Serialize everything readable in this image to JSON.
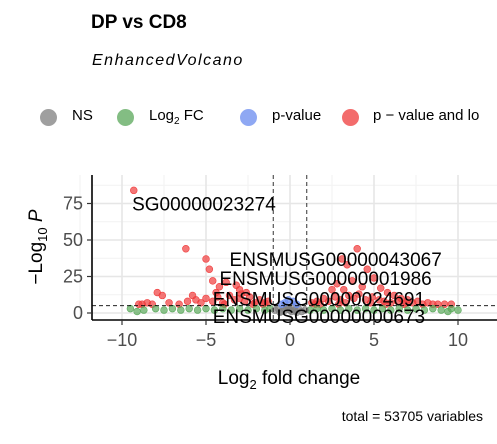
{
  "chart_data": {
    "type": "scatter",
    "title": "DP vs CD8",
    "subtitle": "EnhancedVolcano",
    "xlabel": "Log2 fold change",
    "ylabel": "−Log10 P",
    "xlim": [
      -12,
      11
    ],
    "ylim": [
      -2,
      92
    ],
    "x_ticks": [
      -10,
      -5,
      0,
      5,
      10
    ],
    "y_ticks": [
      0,
      25,
      50,
      75
    ],
    "grid": true,
    "legend_position": "top",
    "caption": "total = 53705 variables",
    "legend": [
      {
        "key": "NS",
        "label": "NS",
        "sub": "",
        "color": "#808080"
      },
      {
        "key": "FC",
        "label": "Log",
        "sub": "2",
        "suffix": " FC",
        "color": "#5aa85a"
      },
      {
        "key": "P",
        "label": "p-value",
        "sub": "",
        "suffix": "",
        "color": "#6a8cf0"
      },
      {
        "key": "FC_P",
        "label": "p − value and lo",
        "sub": "",
        "suffix": "",
        "color": "#f03c3c"
      }
    ],
    "colors": {
      "NS": "#808080",
      "FC": "#5aa85a",
      "P": "#6a8cf0",
      "FC_P": "#f03c3c"
    },
    "thresholds": {
      "log2fc": [
        -1,
        1
      ],
      "neg_log10_p": 5
    },
    "series": [
      {
        "key": "FC_P",
        "points": [
          [
            -9.3,
            84
          ],
          [
            -6.2,
            44
          ],
          [
            -5.0,
            37
          ],
          [
            -4.8,
            30
          ],
          [
            -4.6,
            22
          ],
          [
            -7.9,
            14
          ],
          [
            -7.6,
            12
          ],
          [
            -3.8,
            21
          ],
          [
            -4.2,
            18
          ],
          [
            -3.2,
            19
          ],
          [
            -3.0,
            16
          ],
          [
            -2.6,
            14
          ],
          [
            -8.2,
            6
          ],
          [
            -8.5,
            7
          ],
          [
            -8.8,
            6
          ],
          [
            -7.2,
            7
          ],
          [
            -6.6,
            6
          ],
          [
            -6.1,
            8
          ],
          [
            -5.6,
            9
          ],
          [
            -5.3,
            7
          ],
          [
            -5.0,
            10
          ],
          [
            -4.6,
            8
          ],
          [
            -4.3,
            11
          ],
          [
            -4.0,
            7
          ],
          [
            -3.6,
            12
          ],
          [
            -3.3,
            9
          ],
          [
            -3.0,
            10
          ],
          [
            -2.7,
            8
          ],
          [
            -2.4,
            11
          ],
          [
            -2.1,
            7
          ],
          [
            -1.8,
            9
          ],
          [
            -1.5,
            7
          ],
          [
            -1.3,
            8
          ],
          [
            -9.0,
            6
          ],
          [
            -2.2,
            6
          ],
          [
            -3.9,
            6
          ],
          [
            -1.6,
            6
          ],
          [
            -5.8,
            12
          ],
          [
            -4.4,
            14
          ],
          [
            -2.9,
            13
          ],
          [
            4.0,
            44
          ],
          [
            3.1,
            37
          ],
          [
            3.4,
            33
          ],
          [
            4.6,
            30
          ],
          [
            5.0,
            24
          ],
          [
            3.7,
            22
          ],
          [
            2.8,
            20
          ],
          [
            3.2,
            16
          ],
          [
            2.5,
            16
          ],
          [
            4.3,
            18
          ],
          [
            5.4,
            17
          ],
          [
            5.8,
            14
          ],
          [
            6.2,
            12
          ],
          [
            6.6,
            10
          ],
          [
            7.0,
            9
          ],
          [
            7.6,
            8
          ],
          [
            8.2,
            7
          ],
          [
            8.8,
            6
          ],
          [
            9.2,
            6
          ],
          [
            2.0,
            10
          ],
          [
            2.3,
            8
          ],
          [
            1.6,
            8
          ],
          [
            1.3,
            7
          ],
          [
            2.7,
            11
          ],
          [
            3.0,
            9
          ],
          [
            3.5,
            12
          ],
          [
            3.8,
            10
          ],
          [
            4.1,
            13
          ],
          [
            4.5,
            9
          ],
          [
            4.9,
            11
          ],
          [
            5.3,
            9
          ],
          [
            5.6,
            8
          ],
          [
            6.0,
            7
          ],
          [
            6.4,
            8
          ],
          [
            6.8,
            6
          ],
          [
            7.3,
            7
          ],
          [
            7.9,
            6
          ],
          [
            8.5,
            6
          ],
          [
            9.6,
            6
          ],
          [
            1.8,
            6
          ],
          [
            1.5,
            6
          ],
          [
            2.9,
            6
          ],
          [
            3.3,
            7
          ],
          [
            4.8,
            7
          ],
          [
            5.7,
            6
          ],
          [
            6.9,
            7
          ]
        ]
      },
      {
        "key": "FC",
        "points": [
          [
            -9.5,
            3
          ],
          [
            -8.7,
            2
          ],
          [
            -8.0,
            3
          ],
          [
            -7.5,
            2
          ],
          [
            -7.0,
            3
          ],
          [
            -6.5,
            2
          ],
          [
            -6.0,
            3
          ],
          [
            -5.5,
            2
          ],
          [
            -5.0,
            3
          ],
          [
            -4.5,
            2
          ],
          [
            -4.0,
            3
          ],
          [
            -3.5,
            2
          ],
          [
            -3.0,
            3
          ],
          [
            -2.5,
            2
          ],
          [
            -2.0,
            3
          ],
          [
            -1.5,
            2
          ],
          [
            -1.2,
            3
          ],
          [
            1.2,
            2
          ],
          [
            1.6,
            3
          ],
          [
            2.0,
            2
          ],
          [
            2.5,
            3
          ],
          [
            3.0,
            2
          ],
          [
            3.5,
            3
          ],
          [
            4.0,
            2
          ],
          [
            4.5,
            3
          ],
          [
            5.0,
            2
          ],
          [
            5.5,
            3
          ],
          [
            6.0,
            2
          ],
          [
            6.5,
            3
          ],
          [
            7.0,
            2
          ],
          [
            7.5,
            3
          ],
          [
            8.0,
            2
          ],
          [
            8.5,
            3
          ],
          [
            9.0,
            2
          ],
          [
            9.6,
            3
          ],
          [
            10.0,
            2
          ],
          [
            -9.1,
            1
          ],
          [
            9.4,
            1
          ]
        ]
      },
      {
        "key": "NS",
        "points": [
          [
            -0.9,
            2
          ],
          [
            -0.7,
            3
          ],
          [
            -0.5,
            1
          ],
          [
            -0.3,
            2
          ],
          [
            -0.1,
            3
          ],
          [
            0.1,
            1
          ],
          [
            0.3,
            2
          ],
          [
            0.5,
            3
          ],
          [
            0.7,
            1
          ],
          [
            0.9,
            2
          ],
          [
            -0.6,
            0.5
          ],
          [
            0.4,
            0.5
          ],
          [
            -0.2,
            4
          ],
          [
            0.2,
            4
          ],
          [
            0.0,
            2
          ]
        ]
      },
      {
        "key": "P",
        "points": [
          [
            -0.3,
            7
          ],
          [
            0.2,
            8
          ],
          [
            -0.1,
            9
          ],
          [
            0.4,
            6
          ],
          [
            -0.5,
            6
          ]
        ]
      }
    ],
    "labels": [
      {
        "text": "SG00000023274",
        "x": -9.4,
        "y": 75
      },
      {
        "text": "ENSMUSG00000043067",
        "x": -3.6,
        "y": 37
      },
      {
        "text": "ENSMUSG00000001986",
        "x": -4.2,
        "y": 24
      },
      {
        "text": "ENSMUSG00000024691",
        "x": -4.6,
        "y": 10
      },
      {
        "text": "ENSMUSG00000000673",
        "x": -4.6,
        "y": -2
      }
    ]
  }
}
